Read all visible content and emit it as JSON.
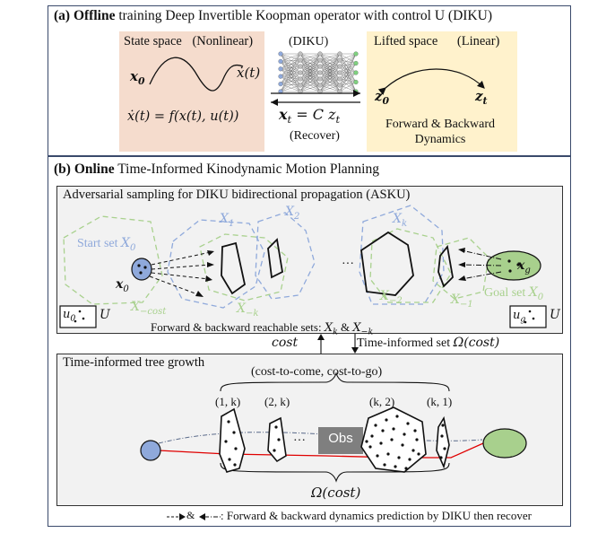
{
  "panel_a": {
    "tag": "(a)",
    "bold_word": "Offline",
    "title_rest": "training Deep Invertible Koopman operator with control U (DIKU)",
    "state_space": {
      "label": "State space",
      "nonlinear": "(Nonlinear)",
      "x0": "x",
      "x0_sub": "0",
      "xt": "ẋ(t)",
      "equation": "ẋ(t) = f(x(t), u(t))"
    },
    "center": {
      "diku": "(DIKU)",
      "eq": "x",
      "eq_rest": " = C z",
      "eq_sub": "t",
      "recover": "(Recover)"
    },
    "lifted_space": {
      "label": "Lifted space",
      "linear": "(Linear)",
      "z0": "z",
      "z0_sub": "0",
      "zt": "z",
      "zt_sub": "t",
      "fb_line1": "Forward & Backward",
      "fb_line2": "Dynamics"
    },
    "colors": {
      "state_bg": "#f5dccd",
      "lifted_bg": "#fff2cc",
      "network_edge": "#555555",
      "node_blue": "#8fa9db",
      "node_grey": "#bfbfbf",
      "node_green": "#7fd07f"
    }
  },
  "panel_b": {
    "tag": "(b)",
    "bold_word": "Online",
    "title_rest": "Time-Informed Kinodynamic Motion Planning",
    "asku": {
      "title": "Adversarial sampling for DIKU bidirectional propagation (ASKU)",
      "start_set": "Start set",
      "goal_set": "Goal set",
      "labels": {
        "xf1": "X",
        "xf1_sup": "f",
        "xf1_sub": "1",
        "xf2": "X",
        "xf2_sup": "f",
        "xf2_sub": "2",
        "xfk": "X",
        "xfk_sup": "f",
        "xfk_sub": "k",
        "xb_cost": "X",
        "xb_cost_sup": "b",
        "xb_cost_sub": "−cost",
        "xb_mk": "X",
        "xb_mk_sup": "b",
        "xb_mk_sub": "−k",
        "xb_m2": "X",
        "xb_m2_sup": "b",
        "xb_m2_sub": "−2",
        "xb_m1": "X",
        "xb_m1_sup": "b",
        "xb_m1_sub": "−1",
        "x0j": "x",
        "x0j_sup": "j",
        "x0j_sub": "0",
        "xgj": "x",
        "xgj_sup": "j",
        "xgj_sub": "g",
        "start_X": "X",
        "start_X_sup": "f",
        "start_X_sub": "0",
        "goal_X": "X",
        "goal_X_sup": "b",
        "goal_X_sub": "0",
        "u0j": "u",
        "u0j_sup": "j",
        "u0j_sub": "0",
        "ugj": "u",
        "ugj_sup": "j",
        "ugj_sub": "g",
        "U": "U",
        "ellipsis": "···"
      },
      "reachable_text": "Forward & backward reachable sets:",
      "reachable_math_f": "X",
      "reachable_math_f_sup": "f",
      "reachable_math_f_sub": "k",
      "reachable_amp": "&",
      "reachable_math_b": "X",
      "reachable_math_b_sup": "b",
      "reachable_math_b_sub": "−k"
    },
    "between": {
      "cost": "cost",
      "time_informed_set": "Time-informed set",
      "omega": "Ω(cost)"
    },
    "tree": {
      "title": "Time-informed tree growth",
      "cost_pair": "(cost-to-come, cost-to-go)",
      "labels": [
        "(1, k)",
        "(2, k)",
        "(k, 2)",
        "(k, 1)"
      ],
      "ellipsis": "···",
      "obs": "Obs",
      "omega": "Ω(cost)"
    },
    "legend": ": Forward & backward dynamics prediction by DIKU then recover",
    "legend_amp": "&",
    "colors": {
      "start_blue": "#8fa9db",
      "goal_green": "#a8d08d",
      "dash_blue": "#8fa9db",
      "dash_green": "#a9d18e",
      "path_red": "#e00000",
      "obs_grey": "#7f7f7f"
    }
  }
}
